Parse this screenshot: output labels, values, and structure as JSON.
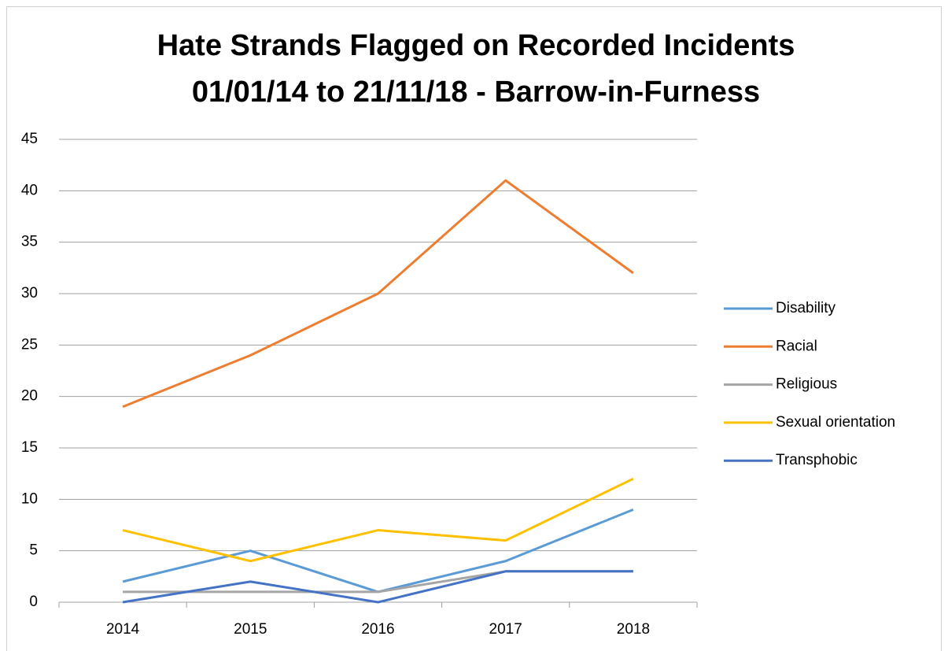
{
  "chart_data": {
    "type": "line",
    "title": [
      "Hate Strands Flagged on Recorded Incidents",
      "01/01/14 to 21/11/18 - Barrow-in-Furness"
    ],
    "categories": [
      "2014",
      "2015",
      "2016",
      "2017",
      "2018"
    ],
    "series": [
      {
        "name": "Disability",
        "color": "#5b9bd5",
        "values": [
          2,
          5,
          1,
          4,
          9
        ]
      },
      {
        "name": "Racial",
        "color": "#ed7d31",
        "values": [
          19,
          24,
          30,
          41,
          32
        ]
      },
      {
        "name": "Religious",
        "color": "#a5a5a5",
        "values": [
          1,
          1,
          1,
          3,
          3
        ]
      },
      {
        "name": "Sexual orientation",
        "color": "#ffc000",
        "values": [
          7,
          4,
          7,
          6,
          12
        ]
      },
      {
        "name": "Transphobic",
        "color": "#4472c4",
        "values": [
          0,
          2,
          0,
          3,
          3
        ]
      }
    ],
    "ylim": [
      0,
      45
    ],
    "yticks": [
      0,
      5,
      10,
      15,
      20,
      25,
      30,
      35,
      40,
      45
    ],
    "grid": true,
    "legend": "right"
  }
}
